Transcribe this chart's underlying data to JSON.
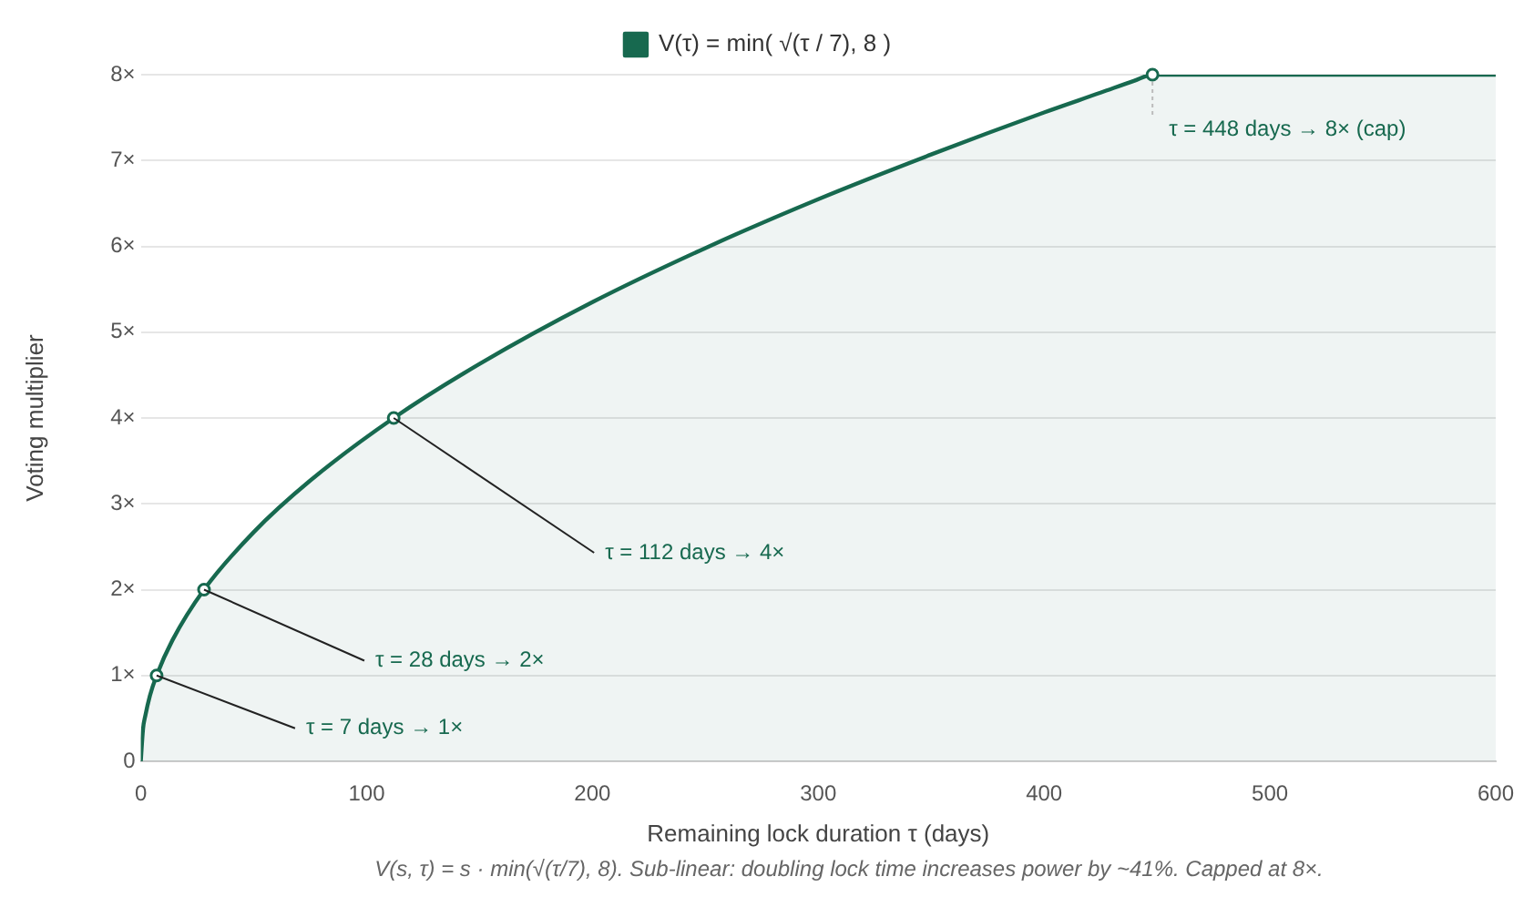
{
  "chart_data": {
    "type": "area",
    "xlabel": "Remaining lock duration τ (days)",
    "ylabel": "Voting multiplier",
    "x": [
      0,
      1,
      2,
      4,
      7,
      14,
      28,
      50,
      75,
      112,
      150,
      200,
      250,
      300,
      350,
      400,
      425,
      440,
      448,
      500,
      550,
      600
    ],
    "series": [
      {
        "name": "V(τ) = min( √(τ / 7), 8 )",
        "color": "#17694f",
        "values": [
          0,
          0.38,
          0.53,
          0.76,
          1,
          1.41,
          2,
          2.67,
          3.27,
          4,
          4.63,
          5.35,
          5.98,
          6.55,
          7.07,
          7.56,
          7.79,
          7.93,
          8,
          8,
          8,
          8
        ]
      }
    ],
    "xlim": [
      0,
      600
    ],
    "xticks": [
      0,
      100,
      200,
      300,
      400,
      500,
      600
    ],
    "ylim": [
      0,
      8
    ],
    "yticks": [
      0,
      {
        "value": 1,
        "label": "1×"
      },
      {
        "value": 2,
        "label": "2×"
      },
      {
        "value": 3,
        "label": "3×"
      },
      {
        "value": 4,
        "label": "4×"
      },
      {
        "value": 5,
        "label": "5×"
      },
      {
        "value": 6,
        "label": "6×"
      },
      {
        "value": 7,
        "label": "7×"
      },
      {
        "value": 8,
        "label": "8×"
      }
    ],
    "grid": "y",
    "legend": "top",
    "line_style": "solid",
    "annotations": [
      {
        "text": "τ = 7 days → 1×",
        "x": 7,
        "y": 1
      },
      {
        "text": "τ = 28 days → 2×",
        "x": 28,
        "y": 2
      },
      {
        "text": "τ = 112 days → 4×",
        "x": 112,
        "y": 4
      },
      {
        "text": "τ = 448 days → 8× (cap)",
        "x": 448,
        "y": 8
      },
      "V(s, τ) = s · min(√(τ/7), 8). Sub-linear: doubling lock time increases power by ~41%. Capped at 8×."
    ]
  }
}
